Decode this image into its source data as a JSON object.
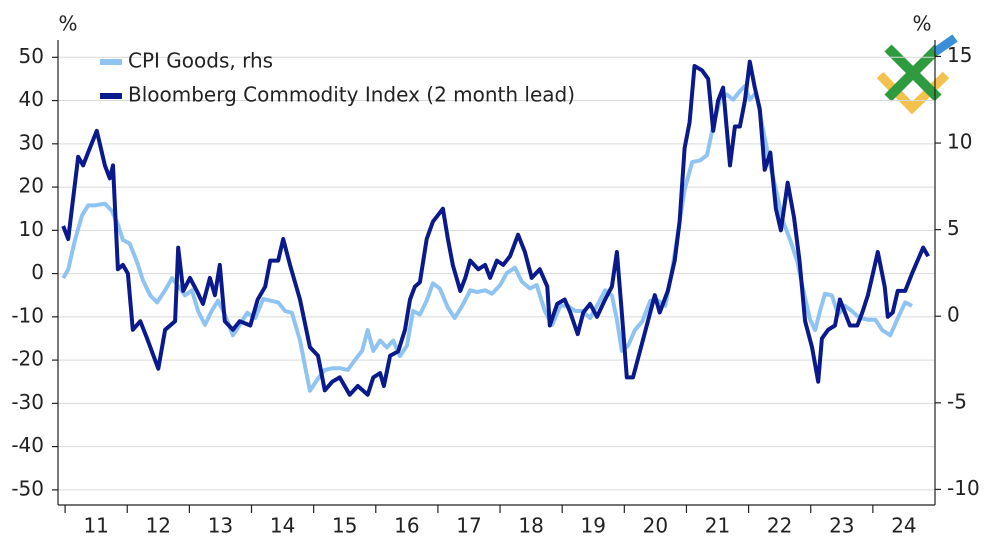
{
  "chart_data": {
    "type": "line",
    "y_unit": "%",
    "y2_unit": "%",
    "xlim": [
      10.95,
      25.0
    ],
    "xticks": [
      {
        "value": 11,
        "label": "11"
      },
      {
        "value": 12,
        "label": "12"
      },
      {
        "value": 13,
        "label": "13"
      },
      {
        "value": 14,
        "label": "14"
      },
      {
        "value": 15,
        "label": "15"
      },
      {
        "value": 16,
        "label": "16"
      },
      {
        "value": 17,
        "label": "17"
      },
      {
        "value": 18,
        "label": "18"
      },
      {
        "value": 19,
        "label": "19"
      },
      {
        "value": 20,
        "label": "20"
      },
      {
        "value": 21,
        "label": "21"
      },
      {
        "value": 22,
        "label": "22"
      },
      {
        "value": 23,
        "label": "23"
      },
      {
        "value": 24,
        "label": "24"
      }
    ],
    "ylim": [
      -53.5,
      54
    ],
    "yticks": [
      -50,
      -40,
      -30,
      -20,
      -10,
      0,
      10,
      20,
      30,
      40,
      50
    ],
    "y2lim": [
      -10.9,
      15.95
    ],
    "y2ticks": [
      -10,
      -5,
      0,
      5,
      10,
      15
    ],
    "grid": true,
    "legend": "top-left",
    "series": [
      {
        "name": "CPI Goods, rhs",
        "color": "#8fc3f2",
        "axis": "y2",
        "x": [
          10.97,
          11.05,
          11.16,
          11.27,
          11.37,
          11.48,
          11.64,
          11.75,
          11.85,
          11.93,
          12.04,
          12.16,
          12.25,
          12.37,
          12.48,
          12.61,
          12.72,
          12.85,
          12.93,
          13.04,
          13.14,
          13.25,
          13.36,
          13.46,
          13.57,
          13.7,
          13.81,
          13.93,
          14.06,
          14.19,
          14.3,
          14.43,
          14.54,
          14.65,
          14.78,
          14.94,
          15.07,
          15.18,
          15.31,
          15.42,
          15.55,
          15.67,
          15.78,
          15.87,
          15.96,
          16.07,
          16.18,
          16.28,
          16.39,
          16.5,
          16.6,
          16.71,
          16.82,
          16.92,
          17.03,
          17.16,
          17.27,
          17.39,
          17.52,
          17.63,
          17.76,
          17.87,
          18.0,
          18.11,
          18.24,
          18.35,
          18.48,
          18.59,
          18.72,
          18.84,
          18.97,
          19.09,
          19.21,
          19.32,
          19.45,
          19.56,
          19.69,
          19.8,
          19.88,
          19.96,
          20.06,
          20.17,
          20.29,
          20.42,
          20.54,
          20.66,
          20.77,
          20.87,
          20.97,
          21.09,
          21.22,
          21.33,
          21.43,
          21.54,
          21.65,
          21.75,
          21.86,
          21.94,
          22.02,
          22.12,
          22.22,
          22.35,
          22.46,
          22.55,
          22.67,
          22.78,
          22.88,
          22.99,
          23.07,
          23.15,
          23.23,
          23.34,
          23.44,
          23.55,
          23.66,
          23.79,
          23.92,
          24.04,
          24.15,
          24.28,
          24.39,
          24.52,
          24.63
        ],
        "values": [
          2.2,
          2.7,
          4.4,
          5.8,
          6.4,
          6.4,
          6.5,
          6.1,
          5.3,
          4.4,
          4.2,
          3.1,
          2.1,
          1.2,
          0.8,
          1.5,
          2.2,
          1.6,
          1.2,
          1.5,
          0.3,
          -0.5,
          0.3,
          0.9,
          0.1,
          -1.1,
          -0.5,
          0.2,
          -0.1,
          1.0,
          0.9,
          0.8,
          0.3,
          0.2,
          -1.4,
          -4.3,
          -3.6,
          -3.1,
          -3.0,
          -3.0,
          -3.1,
          -2.5,
          -2.0,
          -0.8,
          -2.0,
          -1.4,
          -1.8,
          -1.4,
          -2.3,
          -1.7,
          0.3,
          0.1,
          0.9,
          1.9,
          1.6,
          0.5,
          -0.1,
          0.6,
          1.5,
          1.4,
          1.5,
          1.3,
          1.8,
          2.5,
          2.8,
          2.0,
          1.6,
          1.8,
          0.3,
          -0.5,
          0.6,
          0.6,
          0.3,
          0.3,
          -0.1,
          0.6,
          1.5,
          1.2,
          -0.2,
          -2.0,
          -1.7,
          -0.8,
          -0.3,
          0.9,
          0.9,
          0.6,
          2.7,
          5.0,
          7.3,
          8.9,
          9.0,
          9.3,
          11.0,
          12.5,
          12.8,
          12.5,
          13.0,
          13.3,
          12.5,
          12.9,
          11.0,
          8.7,
          7.0,
          5.5,
          4.4,
          3.2,
          1.5,
          -0.2,
          -0.8,
          0.3,
          1.3,
          1.2,
          0.1,
          0.6,
          0.3,
          -0.1,
          -0.2,
          -0.2,
          -0.8,
          -1.1,
          -0.2,
          0.8,
          0.6
        ]
      },
      {
        "name": "Bloomberg Commodity Index (2 month lead)",
        "color": "#0a1a8c",
        "x": [
          10.97,
          11.05,
          11.21,
          11.29,
          11.37,
          11.51,
          11.64,
          11.72,
          11.77,
          11.85,
          11.93,
          12.01,
          12.09,
          12.21,
          12.32,
          12.5,
          12.61,
          12.77,
          12.82,
          12.9,
          13.01,
          13.12,
          13.22,
          13.33,
          13.41,
          13.49,
          13.57,
          13.7,
          13.81,
          13.98,
          14.1,
          14.22,
          14.3,
          14.43,
          14.51,
          14.62,
          14.78,
          14.94,
          15.07,
          15.18,
          15.3,
          15.42,
          15.58,
          15.71,
          15.87,
          15.96,
          16.07,
          16.13,
          16.23,
          16.36,
          16.47,
          16.55,
          16.63,
          16.71,
          16.82,
          16.92,
          17.08,
          17.16,
          17.24,
          17.36,
          17.44,
          17.52,
          17.65,
          17.76,
          17.84,
          17.95,
          18.05,
          18.16,
          18.29,
          18.4,
          18.51,
          18.64,
          18.76,
          18.8,
          18.92,
          19.04,
          19.13,
          19.25,
          19.34,
          19.45,
          19.56,
          19.69,
          19.8,
          19.88,
          19.96,
          20.04,
          20.14,
          20.25,
          20.38,
          20.49,
          20.57,
          20.7,
          20.81,
          20.89,
          20.97,
          21.05,
          21.13,
          21.25,
          21.35,
          21.43,
          21.51,
          21.59,
          21.7,
          21.78,
          21.86,
          21.94,
          22.02,
          22.1,
          22.18,
          22.26,
          22.35,
          22.44,
          22.52,
          22.63,
          22.73,
          22.82,
          22.91,
          23.02,
          23.12,
          23.18,
          23.28,
          23.39,
          23.47,
          23.55,
          23.63,
          23.75,
          23.83,
          23.92,
          24.0,
          24.08,
          24.19,
          24.24,
          24.32,
          24.4,
          24.52,
          24.63,
          24.72,
          24.81,
          24.89
        ],
        "values": [
          11,
          8,
          27,
          25,
          28,
          33,
          25,
          22,
          25,
          1,
          2,
          0,
          -13,
          -11,
          -15,
          -22,
          -13,
          -11,
          6,
          -4,
          -1,
          -4,
          -7,
          -1,
          -5,
          2,
          -11,
          -13,
          -11,
          -12,
          -6,
          -3,
          3,
          3,
          8,
          2,
          -6,
          -17,
          -19,
          -27,
          -25,
          -24,
          -28,
          -26,
          -28,
          -24,
          -23,
          -26,
          -19,
          -18,
          -13,
          -6,
          -3,
          -2,
          8,
          12,
          15,
          8,
          2,
          -4,
          -1,
          3,
          1,
          2,
          -1,
          3,
          2,
          4,
          9,
          5,
          -1,
          1,
          -3,
          -12,
          -7,
          -6,
          -9,
          -14,
          -9,
          -7,
          -10,
          -6,
          -3,
          5,
          -9,
          -24,
          -24,
          -18,
          -11,
          -5,
          -9,
          -4,
          3,
          12,
          29,
          35,
          48,
          47,
          45,
          33,
          40,
          43,
          25,
          34,
          34,
          40,
          49,
          43,
          38,
          24,
          28,
          15,
          10,
          21,
          13,
          3,
          -11,
          -17,
          -25,
          -15,
          -13,
          -12,
          -6,
          -9,
          -12,
          -12,
          -9,
          -5,
          0,
          5,
          -3,
          -10,
          -9,
          -4,
          -4,
          0,
          3,
          6,
          4
        ]
      }
    ]
  }
}
